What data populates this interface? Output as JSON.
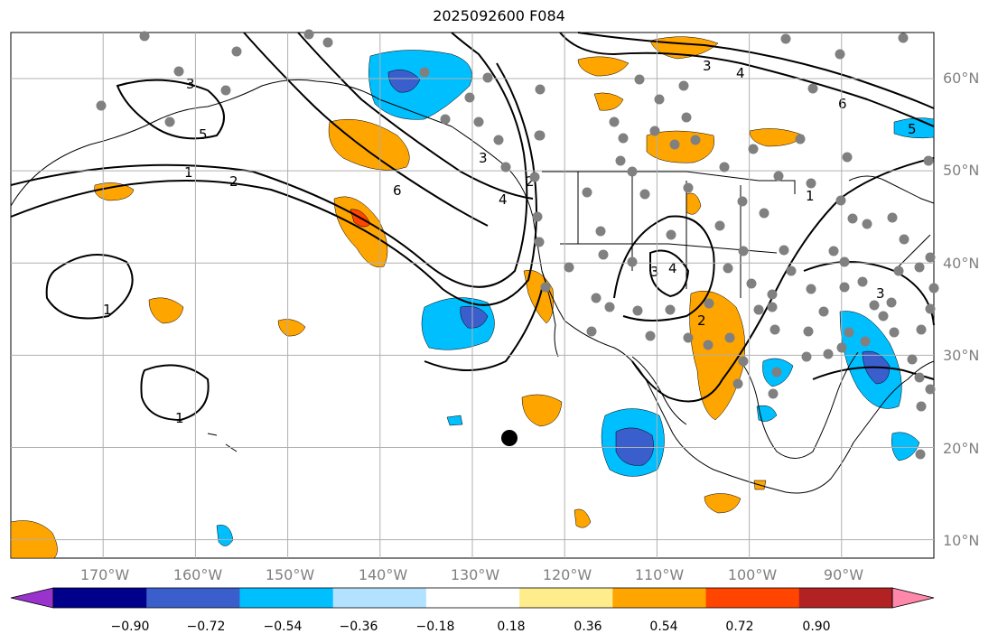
{
  "title": "2025092600 F084",
  "map": {
    "lon_range": [
      -180,
      -80
    ],
    "lat_range": [
      8,
      65
    ],
    "lat_labels": [
      "10°N",
      "20°N",
      "30°N",
      "40°N",
      "50°N",
      "60°N"
    ],
    "lon_labels": [
      "170°W",
      "160°W",
      "150°W",
      "140°W",
      "130°W",
      "120°W",
      "110°W",
      "100°W",
      "90°W"
    ],
    "contour_labels": [
      "1",
      "2",
      "3",
      "5",
      "6",
      "4",
      "3",
      "1",
      "1",
      "1",
      "2",
      "3",
      "4",
      "2",
      "3",
      "6",
      "5",
      "4",
      "3"
    ]
  },
  "colorbar": {
    "ticks": [
      "−0.90",
      "−0.72",
      "−0.54",
      "−0.36",
      "−0.18",
      "0.18",
      "0.36",
      "0.54",
      "0.72",
      "0.90"
    ],
    "colors": [
      "#9a32cd",
      "#00008b",
      "#3a5fcd",
      "#00bfff",
      "#b2e2ff",
      "#ffffff",
      "#ffec8b",
      "#ffa500",
      "#ff4500",
      "#b22222",
      "#ff88aa"
    ]
  },
  "colors": {
    "land_line": "#000000",
    "grid": "#b0b0b0",
    "station_dot": "#808080",
    "marker": "#000000"
  }
}
